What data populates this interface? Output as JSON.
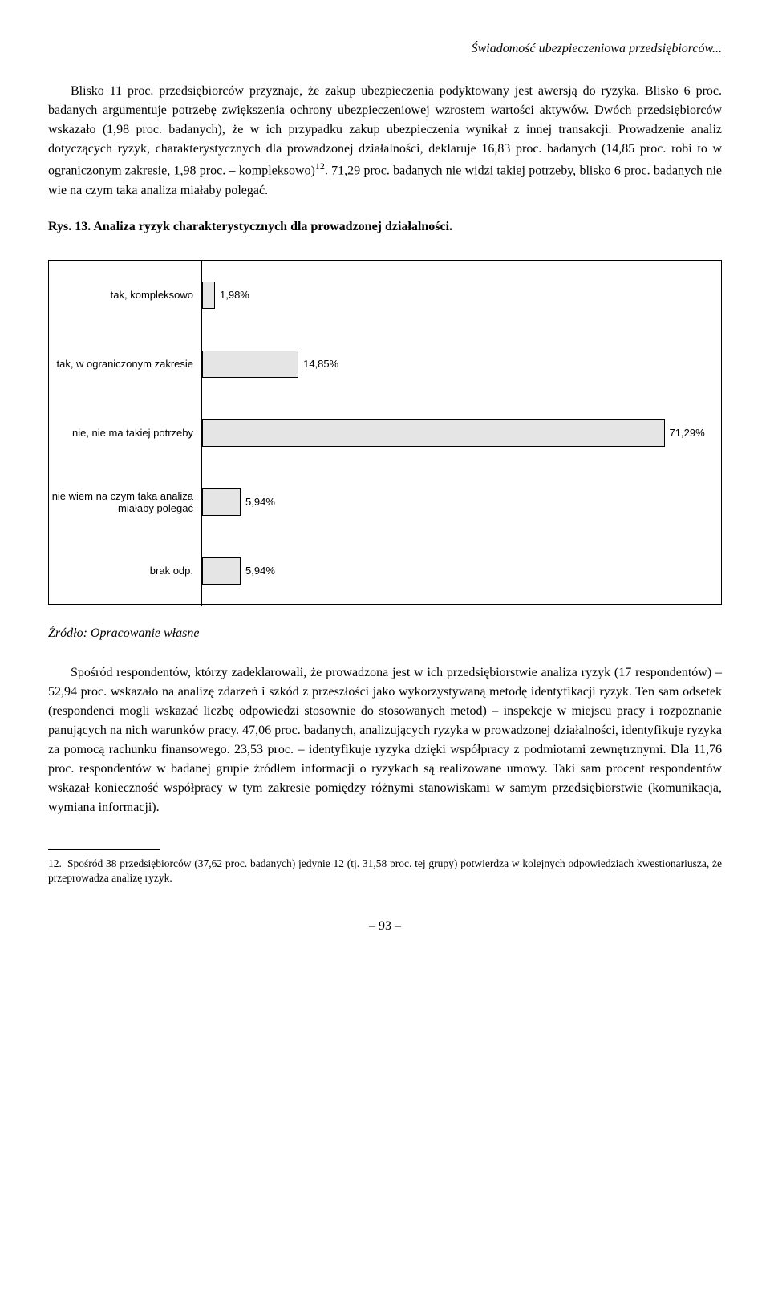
{
  "header": {
    "running_title": "Świadomość ubezpieczeniowa przedsiębiorców..."
  },
  "paragraphs": {
    "p1": "Blisko 11 proc. przedsiębiorców przyznaje, że zakup ubezpieczenia podyktowany jest awersją do ryzyka. Blisko 6 proc. badanych argumentuje potrzebę zwiększenia ochrony ubezpieczeniowej wzrostem wartości aktywów. Dwóch przedsiębiorców wskazało (1,98 proc. badanych), że w ich przypadku zakup ubezpieczenia wynikał z innej transakcji. Prowadzenie analiz dotyczących ryzyk, charakterystycznych dla prowadzonej działalności, deklaruje 16,83 proc. badanych (14,85 proc. robi to w ograniczonym zakresie, 1,98 proc. – kompleksowo)",
    "p1_sup": "12",
    "p1_tail": ". 71,29 proc. badanych nie widzi takiej potrzeby, blisko 6 proc. badanych nie wie na czym taka analiza miałaby polegać.",
    "fig_title": "Rys. 13. Analiza ryzyk charakterystycznych dla prowadzonej działalności.",
    "source": "Źródło: Opracowanie własne",
    "p2": "Spośród respondentów, którzy zadeklarowali, że prowadzona jest w ich przedsiębiorstwie analiza ryzyk (17 respondentów) – 52,94 proc. wskazało na analizę zdarzeń i szkód z przeszłości jako wykorzystywaną metodę identyfikacji ryzyk. Ten sam odsetek (respondenci mogli wskazać liczbę odpowiedzi stosownie do stosowanych metod) – inspekcje w miejscu pracy i rozpoznanie panujących na nich warunków pracy. 47,06 proc. badanych, analizujących ryzyka w prowadzonej działalności, identyfikuje ryzyka za pomocą rachunku finansowego. 23,53 proc. – identyfikuje ryzyka dzięki współpracy z podmiotami zewnętrznymi. Dla 11,76 proc. respondentów w badanej grupie źródłem informacji o ryzykach są realizowane umowy. Taki sam procent respondentów wskazał konieczność współpracy w tym zakresie pomiędzy różnymi stanowiskami w samym przedsiębiorstwie (komunikacja, wymiana informacji)."
  },
  "chart": {
    "type": "horizontal-bar",
    "xmax": 80,
    "bar_color": "#e5e5e5",
    "border_color": "#000000",
    "rows": [
      {
        "label": "tak, kompleksowo",
        "value": 1.98,
        "value_label": "1,98%"
      },
      {
        "label": "tak, w ograniczonym zakresie",
        "value": 14.85,
        "value_label": "14,85%"
      },
      {
        "label": "nie, nie ma takiej potrzeby",
        "value": 71.29,
        "value_label": "71,29%"
      },
      {
        "label": "nie wiem na czym taka analiza miałaby polegać",
        "value": 5.94,
        "value_label": "5,94%"
      },
      {
        "label": "brak odp.",
        "value": 5.94,
        "value_label": "5,94%"
      }
    ]
  },
  "footnote": {
    "num": "12.",
    "text": "Spośród 38 przedsiębiorców (37,62 proc. badanych) jedynie 12 (tj. 31,58 proc. tej grupy) potwierdza w kolejnych odpowiedziach kwestionariusza, że przeprowadza analizę ryzyk."
  },
  "page_number": "– 93 –"
}
